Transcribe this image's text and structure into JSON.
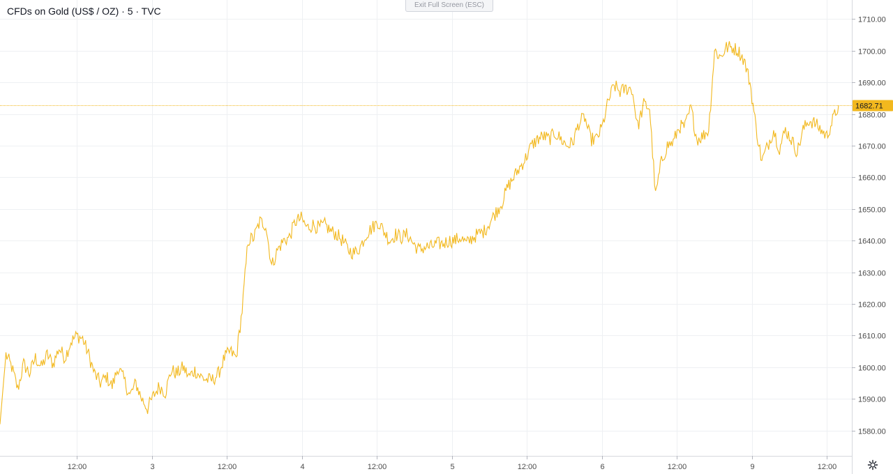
{
  "header": {
    "title": "CFDs on Gold (US$ / OZ) · 5 · TVC",
    "exit_fullscreen_label": "Exit Full Screen (ESC)"
  },
  "colors": {
    "line": "#F2B81E",
    "price_tag": "#F2B81E",
    "grid": "#EEF0F3",
    "axis_text": "#4A4A4A"
  },
  "icons": {
    "settings": "gear-icon"
  },
  "chart_data": {
    "type": "line",
    "title": "CFDs on Gold (US$ / OZ) · 5 · TVC",
    "xlabel": "",
    "ylabel": "",
    "ylim": [
      1572,
      1716
    ],
    "y_ticks": [
      "1580.00",
      "1590.00",
      "1600.00",
      "1610.00",
      "1620.00",
      "1630.00",
      "1640.00",
      "1650.00",
      "1660.00",
      "1670.00",
      "1680.00",
      "1690.00",
      "1700.00",
      "1710.00"
    ],
    "x_ticks": [
      "12:00",
      "3",
      "12:00",
      "4",
      "12:00",
      "5",
      "12:00",
      "6",
      "12:00",
      "9",
      "12:00"
    ],
    "last_price": "1682.71",
    "grid": true,
    "series": [
      {
        "values": [
          1582,
          1604,
          1600,
          1593,
          1601,
          1598,
          1603,
          1600,
          1604,
          1601,
          1606,
          1603,
          1608,
          1610,
          1609,
          1604,
          1598,
          1595,
          1597,
          1594,
          1600,
          1596,
          1591,
          1595,
          1590,
          1587,
          1591,
          1594,
          1592,
          1599,
          1598,
          1600,
          1597,
          1599,
          1597,
          1596,
          1596,
          1598,
          1603,
          1605,
          1603,
          1618,
          1640,
          1641,
          1646,
          1645,
          1632,
          1637,
          1640,
          1641,
          1646,
          1647,
          1644,
          1645,
          1644,
          1645,
          1643,
          1642,
          1640,
          1637,
          1636,
          1638,
          1642,
          1644,
          1646,
          1643,
          1640,
          1642,
          1641,
          1642,
          1639,
          1637,
          1638,
          1638,
          1639,
          1639,
          1640,
          1640,
          1641,
          1639,
          1641,
          1642,
          1643,
          1646,
          1649,
          1652,
          1657,
          1660,
          1663,
          1666,
          1670,
          1672,
          1673,
          1672,
          1674,
          1672,
          1670,
          1671,
          1677,
          1679,
          1672,
          1672,
          1676,
          1684,
          1689,
          1687,
          1688,
          1688,
          1676,
          1683,
          1682,
          1654,
          1665,
          1670,
          1671,
          1676,
          1676,
          1682,
          1672,
          1673,
          1675,
          1700,
          1698,
          1701,
          1701,
          1700,
          1697,
          1690,
          1676,
          1665,
          1670,
          1675,
          1669,
          1675,
          1672,
          1668,
          1675,
          1678,
          1677,
          1675,
          1673,
          1678,
          1682.71
        ]
      }
    ]
  }
}
